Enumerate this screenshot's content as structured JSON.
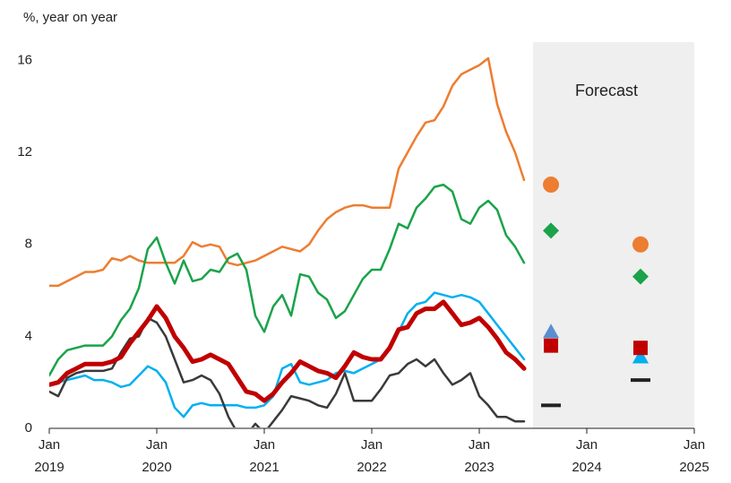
{
  "chart_data": {
    "type": "line",
    "y_axis_label": "%, year on year",
    "x": [
      2019,
      2019.083,
      2019.167,
      2019.25,
      2019.333,
      2019.417,
      2019.5,
      2019.583,
      2019.667,
      2019.75,
      2019.833,
      2019.917,
      2020,
      2020.083,
      2020.167,
      2020.25,
      2020.333,
      2020.417,
      2020.5,
      2020.583,
      2020.667,
      2020.75,
      2020.833,
      2020.917,
      2021,
      2021.083,
      2021.167,
      2021.25,
      2021.333,
      2021.417,
      2021.5,
      2021.583,
      2021.667,
      2021.75,
      2021.833,
      2021.917,
      2022,
      2022.083,
      2022.167,
      2022.25,
      2022.333,
      2022.417,
      2022.5,
      2022.583,
      2022.667,
      2022.75,
      2022.833,
      2022.917,
      2023,
      2023.083,
      2023.167,
      2023.25,
      2023.333,
      2023.417
    ],
    "series": [
      {
        "color": "#ed7d31",
        "width": 2.5,
        "values": [
          6.2,
          6.2,
          6.4,
          6.6,
          6.8,
          6.8,
          6.9,
          7.4,
          7.3,
          7.5,
          7.3,
          7.2,
          7.2,
          7.2,
          7.2,
          7.5,
          8.1,
          7.9,
          8.0,
          7.9,
          7.2,
          7.1,
          7.2,
          7.3,
          7.5,
          7.7,
          7.9,
          7.8,
          7.7,
          8.0,
          8.6,
          9.1,
          9.4,
          9.6,
          9.7,
          9.7,
          9.6,
          9.6,
          9.6,
          11.3,
          12.0,
          12.7,
          13.3,
          13.4,
          14.0,
          14.9,
          15.4,
          15.6,
          15.8,
          16.1,
          14.1,
          12.9,
          12.0,
          10.8
        ]
      },
      {
        "color": "#1aa34a",
        "width": 2.5,
        "values": [
          2.3,
          3.0,
          3.4,
          3.5,
          3.6,
          3.6,
          3.6,
          4.0,
          4.7,
          5.2,
          6.1,
          7.8,
          8.3,
          7.2,
          6.3,
          7.3,
          6.4,
          6.5,
          6.9,
          6.8,
          7.4,
          7.6,
          6.9,
          4.9,
          4.2,
          5.3,
          5.8,
          4.9,
          6.7,
          6.6,
          5.9,
          5.6,
          4.8,
          5.1,
          5.8,
          6.5,
          6.9,
          6.9,
          7.8,
          8.9,
          8.7,
          9.6,
          10.0,
          10.5,
          10.6,
          10.3,
          9.1,
          8.9,
          9.6,
          9.9,
          9.5,
          8.4,
          7.9,
          7.2
        ]
      },
      {
        "color": "#00b0f0",
        "width": 2.5,
        "values": [
          1.9,
          2.0,
          2.1,
          2.2,
          2.3,
          2.1,
          2.1,
          2.0,
          1.8,
          1.9,
          2.3,
          2.7,
          2.5,
          2.0,
          0.9,
          0.5,
          1.0,
          1.1,
          1.0,
          1.0,
          1.0,
          1.0,
          0.9,
          0.9,
          1.0,
          1.4,
          2.6,
          2.8,
          2.0,
          1.9,
          2.0,
          2.1,
          2.4,
          2.5,
          2.4,
          2.6,
          2.8,
          3.0,
          3.5,
          4.2,
          5.0,
          5.4,
          5.5,
          5.9,
          5.8,
          5.7,
          5.8,
          5.7,
          5.5,
          5.0,
          4.5,
          4.0,
          3.5,
          3.0
        ]
      },
      {
        "color": "#3a3a3a",
        "width": 2.5,
        "values": [
          1.6,
          1.4,
          2.2,
          2.4,
          2.5,
          2.5,
          2.5,
          2.6,
          3.3,
          3.9,
          4.0,
          4.8,
          4.6,
          4.0,
          3.0,
          2.0,
          2.1,
          2.3,
          2.1,
          1.5,
          0.5,
          -0.2,
          -0.3,
          0.2,
          -0.2,
          0.3,
          0.8,
          1.4,
          1.3,
          1.2,
          1.0,
          0.9,
          1.5,
          2.4,
          1.2,
          1.2,
          1.2,
          1.7,
          2.3,
          2.4,
          2.8,
          3.0,
          2.7,
          3.0,
          2.4,
          1.9,
          2.1,
          2.4,
          1.4,
          1.0,
          0.5,
          0.5,
          0.3,
          0.3
        ]
      },
      {
        "color": "#c00000",
        "width": 5,
        "values": [
          1.9,
          2.0,
          2.4,
          2.6,
          2.8,
          2.8,
          2.8,
          2.9,
          3.1,
          3.7,
          4.2,
          4.7,
          5.3,
          4.8,
          4.0,
          3.5,
          2.9,
          3.0,
          3.2,
          3.0,
          2.8,
          2.2,
          1.6,
          1.5,
          1.2,
          1.5,
          2.0,
          2.4,
          2.9,
          2.7,
          2.5,
          2.4,
          2.2,
          2.7,
          3.3,
          3.1,
          3.0,
          3.0,
          3.5,
          4.3,
          4.4,
          5.0,
          5.2,
          5.2,
          5.5,
          5.0,
          4.5,
          4.6,
          4.8,
          4.4,
          3.9,
          3.3,
          3.0,
          2.6
        ]
      }
    ],
    "forecast": {
      "label": "Forecast",
      "start": 2023.5,
      "x": [
        2023.667,
        2024.5
      ],
      "points": [
        {
          "marker": "circle",
          "color": "#ed7d31",
          "values": [
            10.6,
            8.0
          ]
        },
        {
          "marker": "diamond",
          "color": "#1aa34a",
          "values": [
            8.6,
            6.6
          ]
        },
        {
          "marker": "triangle",
          "color": "#5b8fd0",
          "values": [
            4.2,
            3.1
          ]
        },
        {
          "marker": "triangle",
          "color": "#00b0f0",
          "values": [
            null,
            3.1
          ]
        },
        {
          "marker": "square",
          "color": "#c00000",
          "values": [
            3.6,
            3.5
          ]
        },
        {
          "marker": "dash",
          "color": "#222222",
          "values": [
            1.0,
            2.1
          ]
        }
      ]
    },
    "xlim": [
      2019,
      2025
    ],
    "xticks": [
      {
        "value": 2019,
        "label": "Jan 2019"
      },
      {
        "value": 2020,
        "label": "Jan 2020"
      },
      {
        "value": 2021,
        "label": "Jan 2021"
      },
      {
        "value": 2022,
        "label": "Jan 2022"
      },
      {
        "value": 2023,
        "label": "Jan 2023"
      },
      {
        "value": 2024,
        "label": "Jan 2024"
      },
      {
        "value": 2025,
        "label": "Jan 2025"
      }
    ],
    "ylim": [
      0,
      16.8
    ],
    "yticks": [
      0,
      4,
      8,
      12,
      16
    ]
  }
}
